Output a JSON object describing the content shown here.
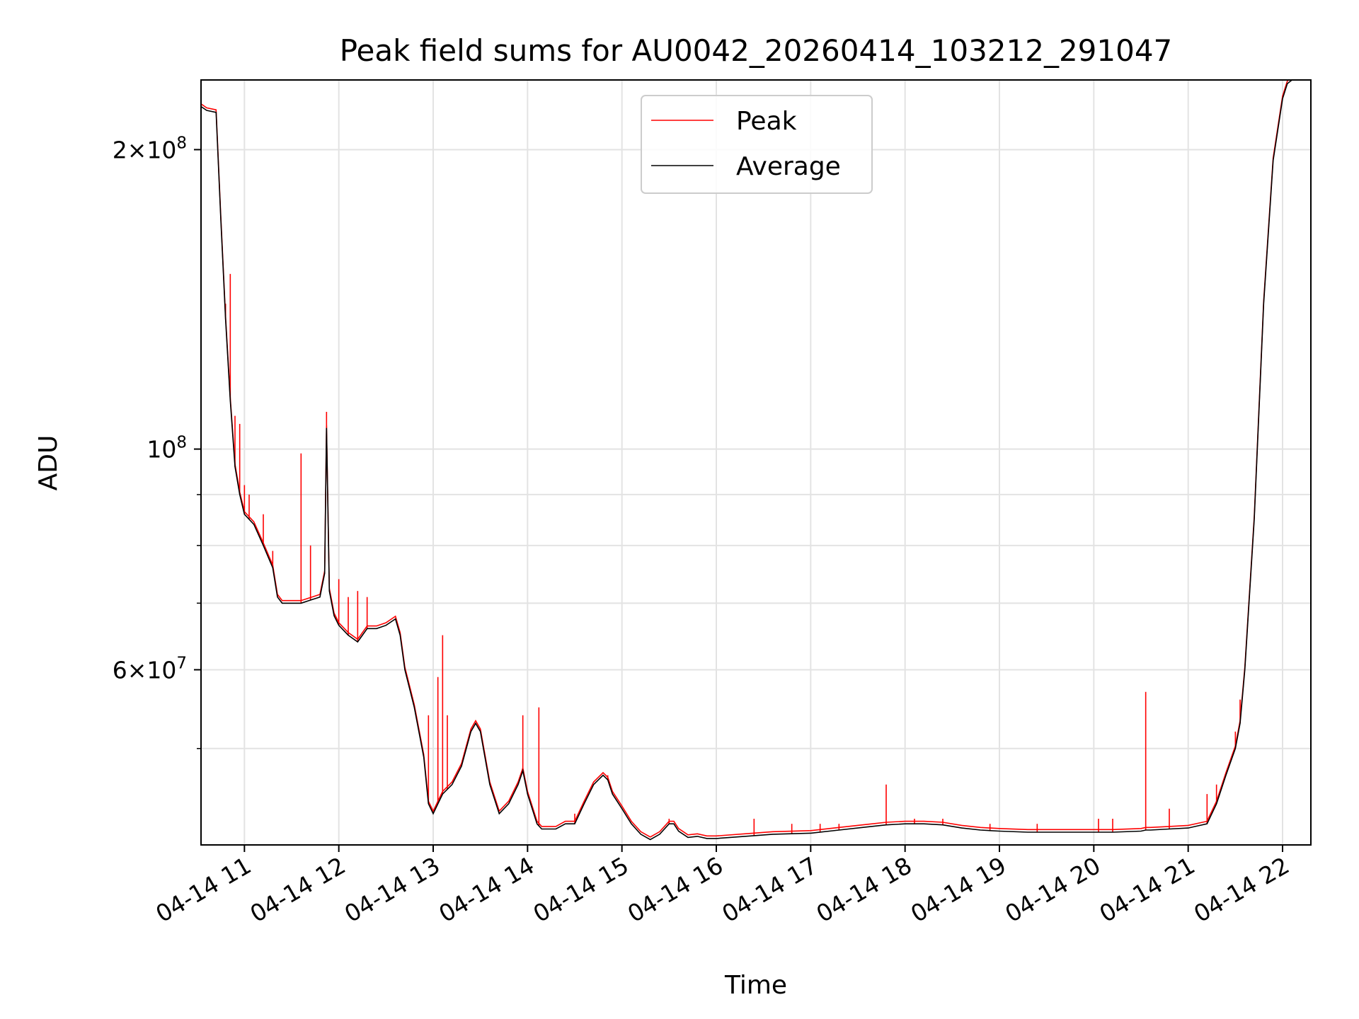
{
  "chart_data": {
    "type": "line",
    "title": "Peak field sums for AU0042_20260414_103212_291047",
    "xlabel": "Time",
    "ylabel": "ADU",
    "yscale": "log",
    "grid": true,
    "legend_position": "upper center",
    "xlim": [
      10.54,
      22.3
    ],
    "ylim": [
      40000000,
      235000000
    ],
    "x_ticks": [
      {
        "value": 11,
        "label": "04-14 11"
      },
      {
        "value": 12,
        "label": "04-14 12"
      },
      {
        "value": 13,
        "label": "04-14 13"
      },
      {
        "value": 14,
        "label": "04-14 14"
      },
      {
        "value": 15,
        "label": "04-14 15"
      },
      {
        "value": 16,
        "label": "04-14 16"
      },
      {
        "value": 17,
        "label": "04-14 17"
      },
      {
        "value": 18,
        "label": "04-14 18"
      },
      {
        "value": 19,
        "label": "04-14 19"
      },
      {
        "value": 20,
        "label": "04-14 20"
      },
      {
        "value": 21,
        "label": "04-14 21"
      },
      {
        "value": 22,
        "label": "04-14 22"
      }
    ],
    "y_major_ticks": [
      {
        "value": 200000000,
        "mantissa": "2",
        "exponent": "8"
      },
      {
        "value": 100000000,
        "mantissa": "",
        "exponent": "8"
      },
      {
        "value": 60000000,
        "mantissa": "6",
        "exponent": "7"
      }
    ],
    "y_minor_ticks": [
      50000000,
      70000000,
      80000000,
      90000000
    ],
    "series": [
      {
        "name": "Average",
        "color": "#000000",
        "x": [
          10.54,
          10.6,
          10.7,
          10.75,
          10.8,
          10.85,
          10.9,
          10.95,
          11.0,
          11.1,
          11.2,
          11.3,
          11.35,
          11.4,
          11.5,
          11.6,
          11.7,
          11.8,
          11.85,
          11.87,
          11.9,
          11.95,
          12.0,
          12.1,
          12.2,
          12.3,
          12.4,
          12.5,
          12.6,
          12.65,
          12.7,
          12.8,
          12.9,
          12.95,
          13.0,
          13.1,
          13.2,
          13.3,
          13.4,
          13.45,
          13.5,
          13.6,
          13.7,
          13.8,
          13.9,
          13.95,
          14.0,
          14.1,
          14.15,
          14.2,
          14.3,
          14.4,
          14.5,
          14.6,
          14.7,
          14.8,
          14.85,
          14.9,
          15.0,
          15.1,
          15.2,
          15.3,
          15.4,
          15.5,
          15.55,
          15.6,
          15.7,
          15.8,
          15.9,
          16.0,
          16.3,
          16.6,
          17.0,
          17.3,
          17.6,
          17.8,
          18.0,
          18.2,
          18.4,
          18.6,
          18.8,
          19.0,
          19.3,
          19.6,
          19.9,
          20.2,
          20.5,
          20.55,
          20.6,
          20.8,
          21.0,
          21.1,
          21.2,
          21.3,
          21.4,
          21.5,
          21.55,
          21.6,
          21.7,
          21.8,
          21.9,
          22.0,
          22.05,
          22.1,
          22.3
        ],
        "y": [
          221000000,
          219000000,
          218000000,
          170000000,
          135000000,
          112000000,
          96000000,
          90000000,
          86000000,
          84000000,
          80000000,
          76000000,
          71000000,
          70000000,
          70000000,
          70000000,
          70500000,
          71000000,
          75000000,
          105000000,
          72000000,
          68000000,
          66500000,
          65000000,
          64000000,
          66000000,
          66000000,
          66500000,
          67500000,
          65000000,
          60000000,
          55000000,
          49000000,
          44000000,
          43000000,
          45000000,
          46000000,
          48000000,
          52000000,
          53000000,
          52000000,
          46000000,
          43000000,
          44000000,
          46000000,
          47500000,
          45000000,
          42000000,
          41500000,
          41500000,
          41500000,
          42000000,
          42000000,
          44000000,
          46000000,
          47000000,
          46500000,
          45000000,
          43500000,
          42000000,
          41000000,
          40500000,
          41000000,
          42000000,
          42000000,
          41300000,
          40700000,
          40800000,
          40600000,
          40600000,
          40800000,
          41000000,
          41100000,
          41400000,
          41700000,
          41900000,
          42000000,
          42000000,
          41900000,
          41600000,
          41400000,
          41300000,
          41200000,
          41200000,
          41200000,
          41200000,
          41300000,
          41400000,
          41400000,
          41500000,
          41600000,
          41800000,
          42000000,
          44000000,
          47000000,
          50000000,
          53000000,
          60000000,
          85000000,
          140000000,
          195000000,
          225000000,
          233000000,
          235000000,
          236000000
        ]
      },
      {
        "name": "Peak",
        "color": "#ff0000",
        "spikes": [
          [
            10.8,
            140000000
          ],
          [
            10.85,
            150000000
          ],
          [
            10.9,
            108000000
          ],
          [
            10.95,
            106000000
          ],
          [
            11.0,
            92000000
          ],
          [
            11.05,
            90000000
          ],
          [
            11.2,
            86000000
          ],
          [
            11.3,
            79000000
          ],
          [
            11.6,
            99000000
          ],
          [
            11.7,
            80000000
          ],
          [
            11.87,
            109000000
          ],
          [
            12.0,
            74000000
          ],
          [
            12.1,
            71000000
          ],
          [
            12.2,
            72000000
          ],
          [
            12.3,
            71000000
          ],
          [
            12.95,
            54000000
          ],
          [
            13.05,
            59000000
          ],
          [
            13.1,
            65000000
          ],
          [
            13.15,
            54000000
          ],
          [
            13.95,
            54000000
          ],
          [
            14.12,
            55000000
          ],
          [
            14.5,
            43000000
          ],
          [
            14.85,
            47000000
          ],
          [
            15.5,
            42500000
          ],
          [
            16.4,
            42500000
          ],
          [
            16.8,
            42000000
          ],
          [
            17.1,
            42000000
          ],
          [
            17.3,
            42000000
          ],
          [
            17.8,
            46000000
          ],
          [
            18.1,
            42500000
          ],
          [
            18.4,
            42500000
          ],
          [
            18.9,
            42000000
          ],
          [
            19.4,
            42000000
          ],
          [
            20.05,
            42500000
          ],
          [
            20.2,
            42500000
          ],
          [
            20.55,
            57000000
          ],
          [
            20.8,
            43500000
          ],
          [
            21.2,
            45000000
          ],
          [
            21.3,
            46000000
          ],
          [
            21.5,
            52000000
          ],
          [
            21.55,
            56000000
          ]
        ]
      }
    ]
  }
}
